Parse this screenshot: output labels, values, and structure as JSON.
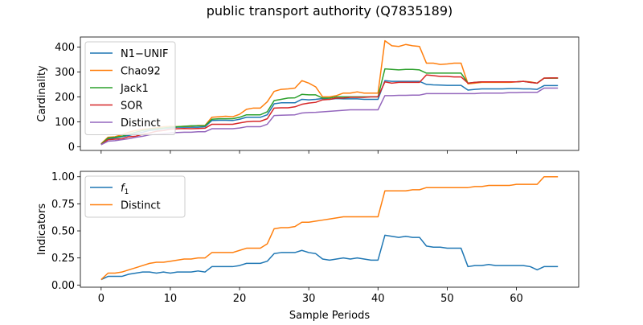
{
  "figure": {
    "title": "public transport authority (Q7835189)"
  },
  "chart_data": [
    {
      "type": "line",
      "ylabel": "Cardinality",
      "xlabel": "",
      "xlim": [
        -3,
        69
      ],
      "ylim": [
        -15,
        440
      ],
      "xticks": [
        0,
        10,
        20,
        30,
        40,
        50,
        60
      ],
      "yticks": [
        0,
        100,
        200,
        300,
        400
      ],
      "legend_position": "upper-left",
      "x": [
        0,
        1,
        2,
        3,
        4,
        5,
        6,
        7,
        8,
        9,
        10,
        11,
        12,
        13,
        14,
        15,
        16,
        17,
        18,
        19,
        20,
        21,
        22,
        23,
        24,
        25,
        26,
        27,
        28,
        29,
        30,
        31,
        32,
        33,
        34,
        35,
        36,
        37,
        38,
        39,
        40,
        41,
        42,
        43,
        44,
        45,
        46,
        47,
        48,
        49,
        50,
        51,
        52,
        53,
        54,
        55,
        56,
        57,
        58,
        59,
        60,
        61,
        62,
        63,
        64,
        65,
        66
      ],
      "series": [
        {
          "name": "N1−UNIF",
          "color": "#1f77b4",
          "values": [
            10,
            32,
            35,
            40,
            45,
            52,
            58,
            65,
            68,
            72,
            75,
            78,
            78,
            78,
            78,
            80,
            105,
            106,
            106,
            105,
            110,
            118,
            118,
            118,
            128,
            172,
            176,
            176,
            176,
            190,
            188,
            190,
            193,
            190,
            193,
            192,
            192,
            192,
            190,
            190,
            190,
            265,
            262,
            262,
            262,
            262,
            262,
            250,
            248,
            247,
            246,
            246,
            246,
            227,
            230,
            232,
            232,
            232,
            232,
            233,
            233,
            232,
            232,
            230,
            245,
            245,
            245
          ]
        },
        {
          "name": "Chao92",
          "color": "#ff7f0e",
          "values": [
            12,
            38,
            40,
            48,
            58,
            65,
            70,
            72,
            76,
            80,
            82,
            80,
            82,
            82,
            85,
            85,
            118,
            120,
            122,
            120,
            130,
            150,
            155,
            155,
            180,
            222,
            230,
            232,
            235,
            265,
            255,
            240,
            200,
            200,
            205,
            215,
            215,
            220,
            215,
            215,
            215,
            425,
            405,
            402,
            410,
            405,
            402,
            335,
            335,
            330,
            332,
            335,
            335,
            252,
            255,
            258,
            258,
            258,
            258,
            258,
            260,
            262,
            260,
            255,
            275,
            275,
            275
          ]
        },
        {
          "name": "Jack1",
          "color": "#2ca02c",
          "values": [
            10,
            35,
            38,
            42,
            50,
            58,
            65,
            70,
            72,
            75,
            78,
            80,
            82,
            84,
            84,
            84,
            110,
            112,
            112,
            112,
            118,
            128,
            128,
            128,
            140,
            185,
            190,
            195,
            196,
            210,
            208,
            208,
            195,
            195,
            200,
            200,
            200,
            200,
            200,
            200,
            200,
            312,
            310,
            308,
            310,
            310,
            308,
            295,
            295,
            295,
            295,
            295,
            295,
            255,
            258,
            260,
            260,
            260,
            260,
            260,
            260,
            262,
            258,
            255,
            275,
            275,
            275
          ]
        },
        {
          "name": "SOR",
          "color": "#d62728",
          "values": [
            8,
            28,
            30,
            32,
            40,
            42,
            50,
            55,
            62,
            65,
            70,
            72,
            73,
            72,
            73,
            74,
            90,
            90,
            90,
            90,
            95,
            100,
            102,
            102,
            112,
            155,
            156,
            156,
            160,
            170,
            175,
            178,
            188,
            190,
            195,
            195,
            198,
            198,
            198,
            200,
            200,
            260,
            255,
            258,
            258,
            258,
            258,
            288,
            285,
            282,
            282,
            280,
            280,
            255,
            258,
            260,
            260,
            260,
            260,
            260,
            260,
            262,
            258,
            255,
            275,
            276,
            276
          ]
        },
        {
          "name": "Distinct",
          "color": "#9467bd",
          "values": [
            8,
            22,
            24,
            28,
            32,
            38,
            42,
            48,
            50,
            52,
            55,
            57,
            58,
            58,
            60,
            60,
            72,
            72,
            72,
            72,
            75,
            80,
            80,
            80,
            90,
            125,
            126,
            127,
            128,
            135,
            137,
            138,
            140,
            142,
            144,
            146,
            148,
            148,
            148,
            148,
            148,
            205,
            205,
            206,
            206,
            207,
            207,
            213,
            213,
            213,
            213,
            213,
            213,
            213,
            213,
            215,
            215,
            215,
            215,
            217,
            217,
            218,
            218,
            218,
            235,
            235,
            235
          ]
        }
      ]
    },
    {
      "type": "line",
      "ylabel": "Indicators",
      "xlabel": "Sample Periods",
      "xlim": [
        -3,
        69
      ],
      "ylim": [
        -0.02,
        1.05
      ],
      "xticks": [
        0,
        10,
        20,
        30,
        40,
        50,
        60
      ],
      "yticks": [
        0.0,
        0.25,
        0.5,
        0.75,
        1.0
      ],
      "ytick_labels": [
        "0.00",
        "0.25",
        "0.50",
        "0.75",
        "1.00"
      ],
      "legend_position": "upper-left",
      "x": [
        0,
        1,
        2,
        3,
        4,
        5,
        6,
        7,
        8,
        9,
        10,
        11,
        12,
        13,
        14,
        15,
        16,
        17,
        18,
        19,
        20,
        21,
        22,
        23,
        24,
        25,
        26,
        27,
        28,
        29,
        30,
        31,
        32,
        33,
        34,
        35,
        36,
        37,
        38,
        39,
        40,
        41,
        42,
        43,
        44,
        45,
        46,
        47,
        48,
        49,
        50,
        51,
        52,
        53,
        54,
        55,
        56,
        57,
        58,
        59,
        60,
        61,
        62,
        63,
        64,
        65,
        66
      ],
      "series": [
        {
          "name": "f1",
          "name_main": "f",
          "name_sub": "1",
          "color": "#1f77b4",
          "values": [
            0.05,
            0.08,
            0.08,
            0.08,
            0.1,
            0.11,
            0.12,
            0.12,
            0.11,
            0.12,
            0.11,
            0.12,
            0.12,
            0.12,
            0.13,
            0.12,
            0.17,
            0.17,
            0.17,
            0.17,
            0.18,
            0.2,
            0.2,
            0.2,
            0.22,
            0.29,
            0.3,
            0.3,
            0.3,
            0.32,
            0.3,
            0.29,
            0.24,
            0.23,
            0.24,
            0.25,
            0.24,
            0.25,
            0.24,
            0.23,
            0.23,
            0.46,
            0.45,
            0.44,
            0.45,
            0.44,
            0.44,
            0.36,
            0.35,
            0.35,
            0.34,
            0.34,
            0.34,
            0.17,
            0.18,
            0.18,
            0.19,
            0.18,
            0.18,
            0.18,
            0.18,
            0.18,
            0.17,
            0.14,
            0.17,
            0.17,
            0.17
          ]
        },
        {
          "name": "Distinct",
          "color": "#ff7f0e",
          "values": [
            0.05,
            0.11,
            0.11,
            0.12,
            0.14,
            0.16,
            0.18,
            0.2,
            0.21,
            0.21,
            0.22,
            0.23,
            0.24,
            0.24,
            0.25,
            0.25,
            0.3,
            0.3,
            0.3,
            0.3,
            0.32,
            0.34,
            0.34,
            0.34,
            0.38,
            0.52,
            0.53,
            0.53,
            0.54,
            0.58,
            0.58,
            0.59,
            0.6,
            0.61,
            0.62,
            0.63,
            0.63,
            0.63,
            0.63,
            0.63,
            0.63,
            0.87,
            0.87,
            0.87,
            0.87,
            0.88,
            0.88,
            0.9,
            0.9,
            0.9,
            0.9,
            0.9,
            0.9,
            0.9,
            0.91,
            0.91,
            0.92,
            0.92,
            0.92,
            0.92,
            0.93,
            0.93,
            0.93,
            0.93,
            1.0,
            1.0,
            1.0
          ]
        }
      ]
    }
  ]
}
